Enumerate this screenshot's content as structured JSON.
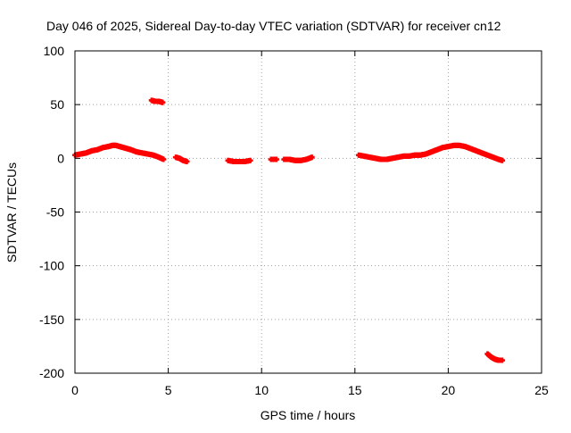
{
  "chart_data": {
    "type": "scatter",
    "title": "Day 046 of 2025, Sidereal Day-to-day VTEC variation (SDTVAR) for receiver cn12",
    "xlabel": "GPS time / hours",
    "ylabel": "SDTVAR / TECUs",
    "xlim": [
      0,
      25
    ],
    "ylim": [
      -200,
      100
    ],
    "xticks": [
      0,
      5,
      10,
      15,
      20,
      25
    ],
    "yticks": [
      100,
      50,
      0,
      -50,
      -100,
      -150,
      -200
    ],
    "grid": true,
    "marker": "plus",
    "colors": {
      "series": "#ff0000",
      "grid": "#a0a0a0",
      "axes": "#000000",
      "background": "#ffffff"
    },
    "series": [
      {
        "name": "SDTVAR",
        "segments": [
          {
            "x": [
              0.0,
              0.3,
              0.6,
              0.9,
              1.2,
              1.5,
              1.8,
              2.0,
              2.2,
              2.4,
              2.6,
              2.8,
              3.0,
              3.3,
              3.6,
              3.9,
              4.2,
              4.5,
              4.75
            ],
            "y": [
              3,
              4,
              5,
              7,
              8,
              10,
              11,
              12,
              12,
              11,
              10,
              9,
              8,
              6,
              5,
              4,
              3,
              1,
              -1
            ]
          },
          {
            "x": [
              4.1,
              4.3,
              4.5,
              4.7
            ],
            "y": [
              54,
              53,
              53,
              52
            ]
          },
          {
            "x": [
              5.4,
              5.6,
              5.8,
              6.0
            ],
            "y": [
              1,
              0,
              -2,
              -3
            ]
          },
          {
            "x": [
              8.2,
              8.5,
              8.8,
              9.1,
              9.4
            ],
            "y": [
              -2,
              -3,
              -3,
              -3,
              -2
            ]
          },
          {
            "x": [
              10.5,
              10.8
            ],
            "y": [
              -1,
              -1
            ]
          },
          {
            "x": [
              11.2,
              11.5,
              11.8,
              12.1,
              12.4,
              12.7
            ],
            "y": [
              -1,
              -1,
              -2,
              -2,
              -1,
              1
            ]
          },
          {
            "x": [
              15.2,
              15.5,
              15.8,
              16.1,
              16.4,
              16.7,
              17.0,
              17.3,
              17.6,
              17.9,
              18.2,
              18.5,
              18.8,
              19.1,
              19.4,
              19.7,
              20.0,
              20.3,
              20.6,
              20.9,
              21.2,
              21.5,
              21.8,
              22.1,
              22.4,
              22.7,
              22.9
            ],
            "y": [
              3,
              2,
              1,
              0,
              -1,
              -1,
              0,
              1,
              2,
              2,
              3,
              3,
              4,
              6,
              8,
              10,
              11,
              12,
              12,
              11,
              9,
              7,
              5,
              3,
              1,
              -1,
              -2
            ]
          },
          {
            "x": [
              22.1,
              22.3,
              22.5,
              22.7,
              22.9
            ],
            "y": [
              -182,
              -185,
              -187,
              -188,
              -188
            ]
          }
        ]
      }
    ]
  }
}
